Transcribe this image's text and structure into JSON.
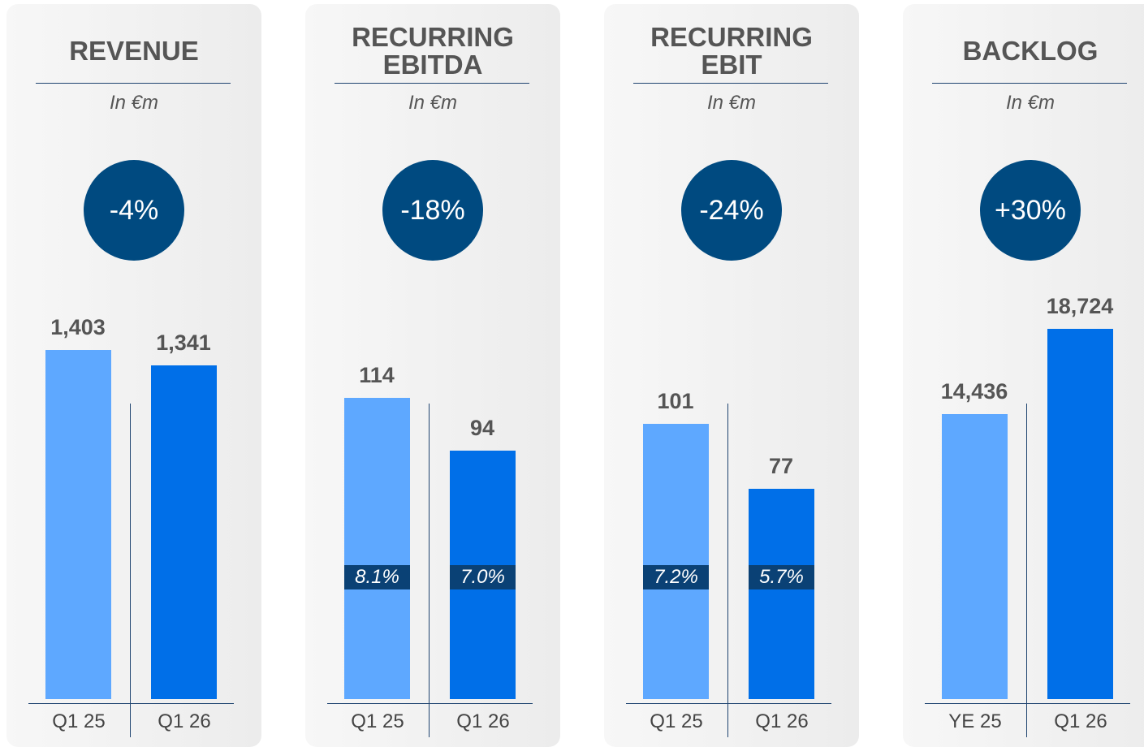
{
  "chart_data": [
    {
      "type": "bar",
      "title": "REVENUE",
      "subtitle": "In €m",
      "change": "-4%",
      "categories": [
        "Q1 25",
        "Q1 26"
      ],
      "values": [
        1403,
        1341
      ],
      "value_labels": [
        "1,403",
        "1,341"
      ],
      "colors": [
        "#5ea8ff",
        "#006fe8"
      ],
      "ylim": [
        0,
        1700
      ]
    },
    {
      "type": "bar",
      "title": "RECURRING EBITDA",
      "subtitle": "In €m",
      "change": "-18%",
      "categories": [
        "Q1 25",
        "Q1 26"
      ],
      "values": [
        114,
        94
      ],
      "annotations": [
        "8.1%",
        "7.0%"
      ],
      "colors": [
        "#5ea8ff",
        "#006fe8"
      ],
      "ylim": [
        0,
        160
      ]
    },
    {
      "type": "bar",
      "title": "RECURRING EBIT",
      "subtitle": "In €m",
      "change": "-24%",
      "categories": [
        "Q1 25",
        "Q1 26"
      ],
      "values": [
        101,
        77
      ],
      "annotations": [
        "7.2%",
        "5.7%"
      ],
      "colors": [
        "#5ea8ff",
        "#006fe8"
      ],
      "ylim": [
        0,
        155
      ]
    },
    {
      "type": "bar",
      "title": "BACKLOG",
      "subtitle": "In €m",
      "change": "+30%",
      "categories": [
        "YE 25",
        "Q1 26"
      ],
      "values": [
        14436,
        18724
      ],
      "value_labels": [
        "14,436",
        "18,724"
      ],
      "colors": [
        "#5ea8ff",
        "#006fe8"
      ],
      "ylim": [
        0,
        21400
      ]
    }
  ]
}
